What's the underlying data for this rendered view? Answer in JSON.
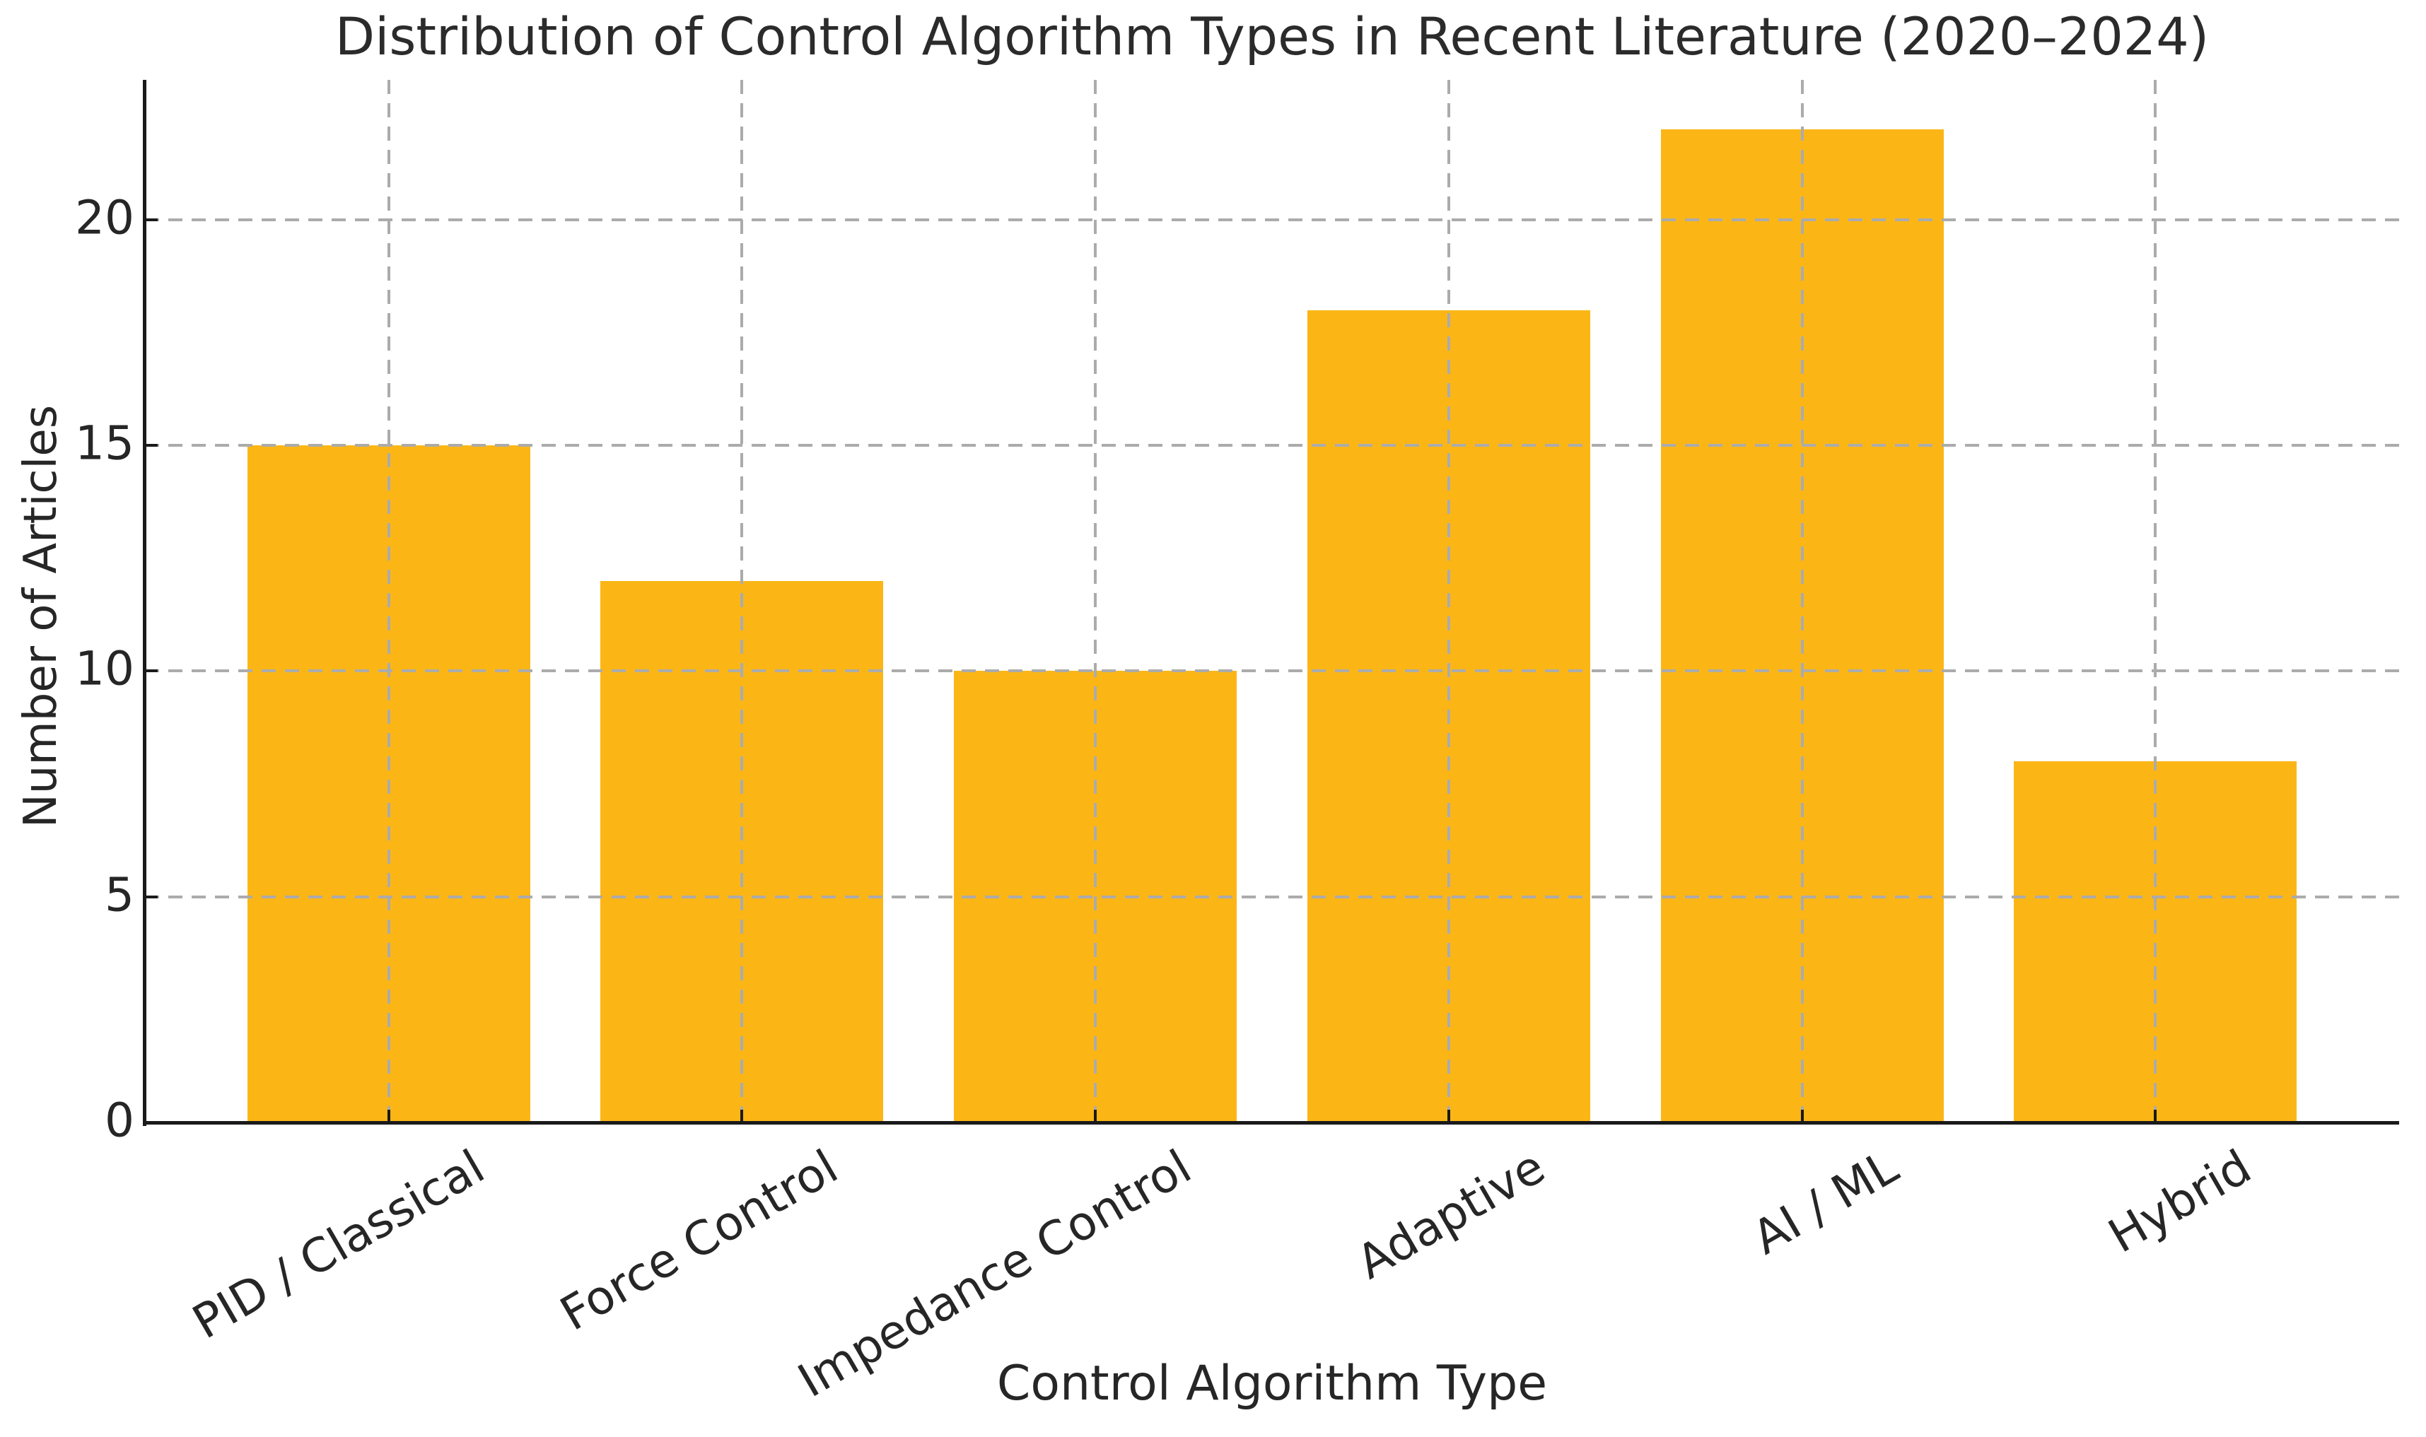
{
  "chart_data": {
    "type": "bar",
    "title": "Distribution of Control Algorithm Types in Recent Literature (2020–2024)",
    "categories": [
      "PID / Classical",
      "Force Control",
      "Impedance Control",
      "Adaptive",
      "AI / ML",
      "Hybrid"
    ],
    "values": [
      15,
      12,
      10,
      18,
      22,
      8
    ],
    "xlabel": "Control Algorithm Type",
    "ylabel": "Number of Articles",
    "yticks": [
      0,
      5,
      10,
      15,
      20
    ],
    "ylim": [
      0,
      23.1
    ],
    "bar_color": "#FBB616",
    "grid": true,
    "grid_style": "dashed",
    "grid_color": "#ABABAB",
    "grid_above_bars": true,
    "axis_color": "#1A1A1A",
    "text_color": "#262626",
    "legend": "none",
    "spines": [
      "left",
      "bottom"
    ],
    "xtick_rotation_deg": 30
  }
}
